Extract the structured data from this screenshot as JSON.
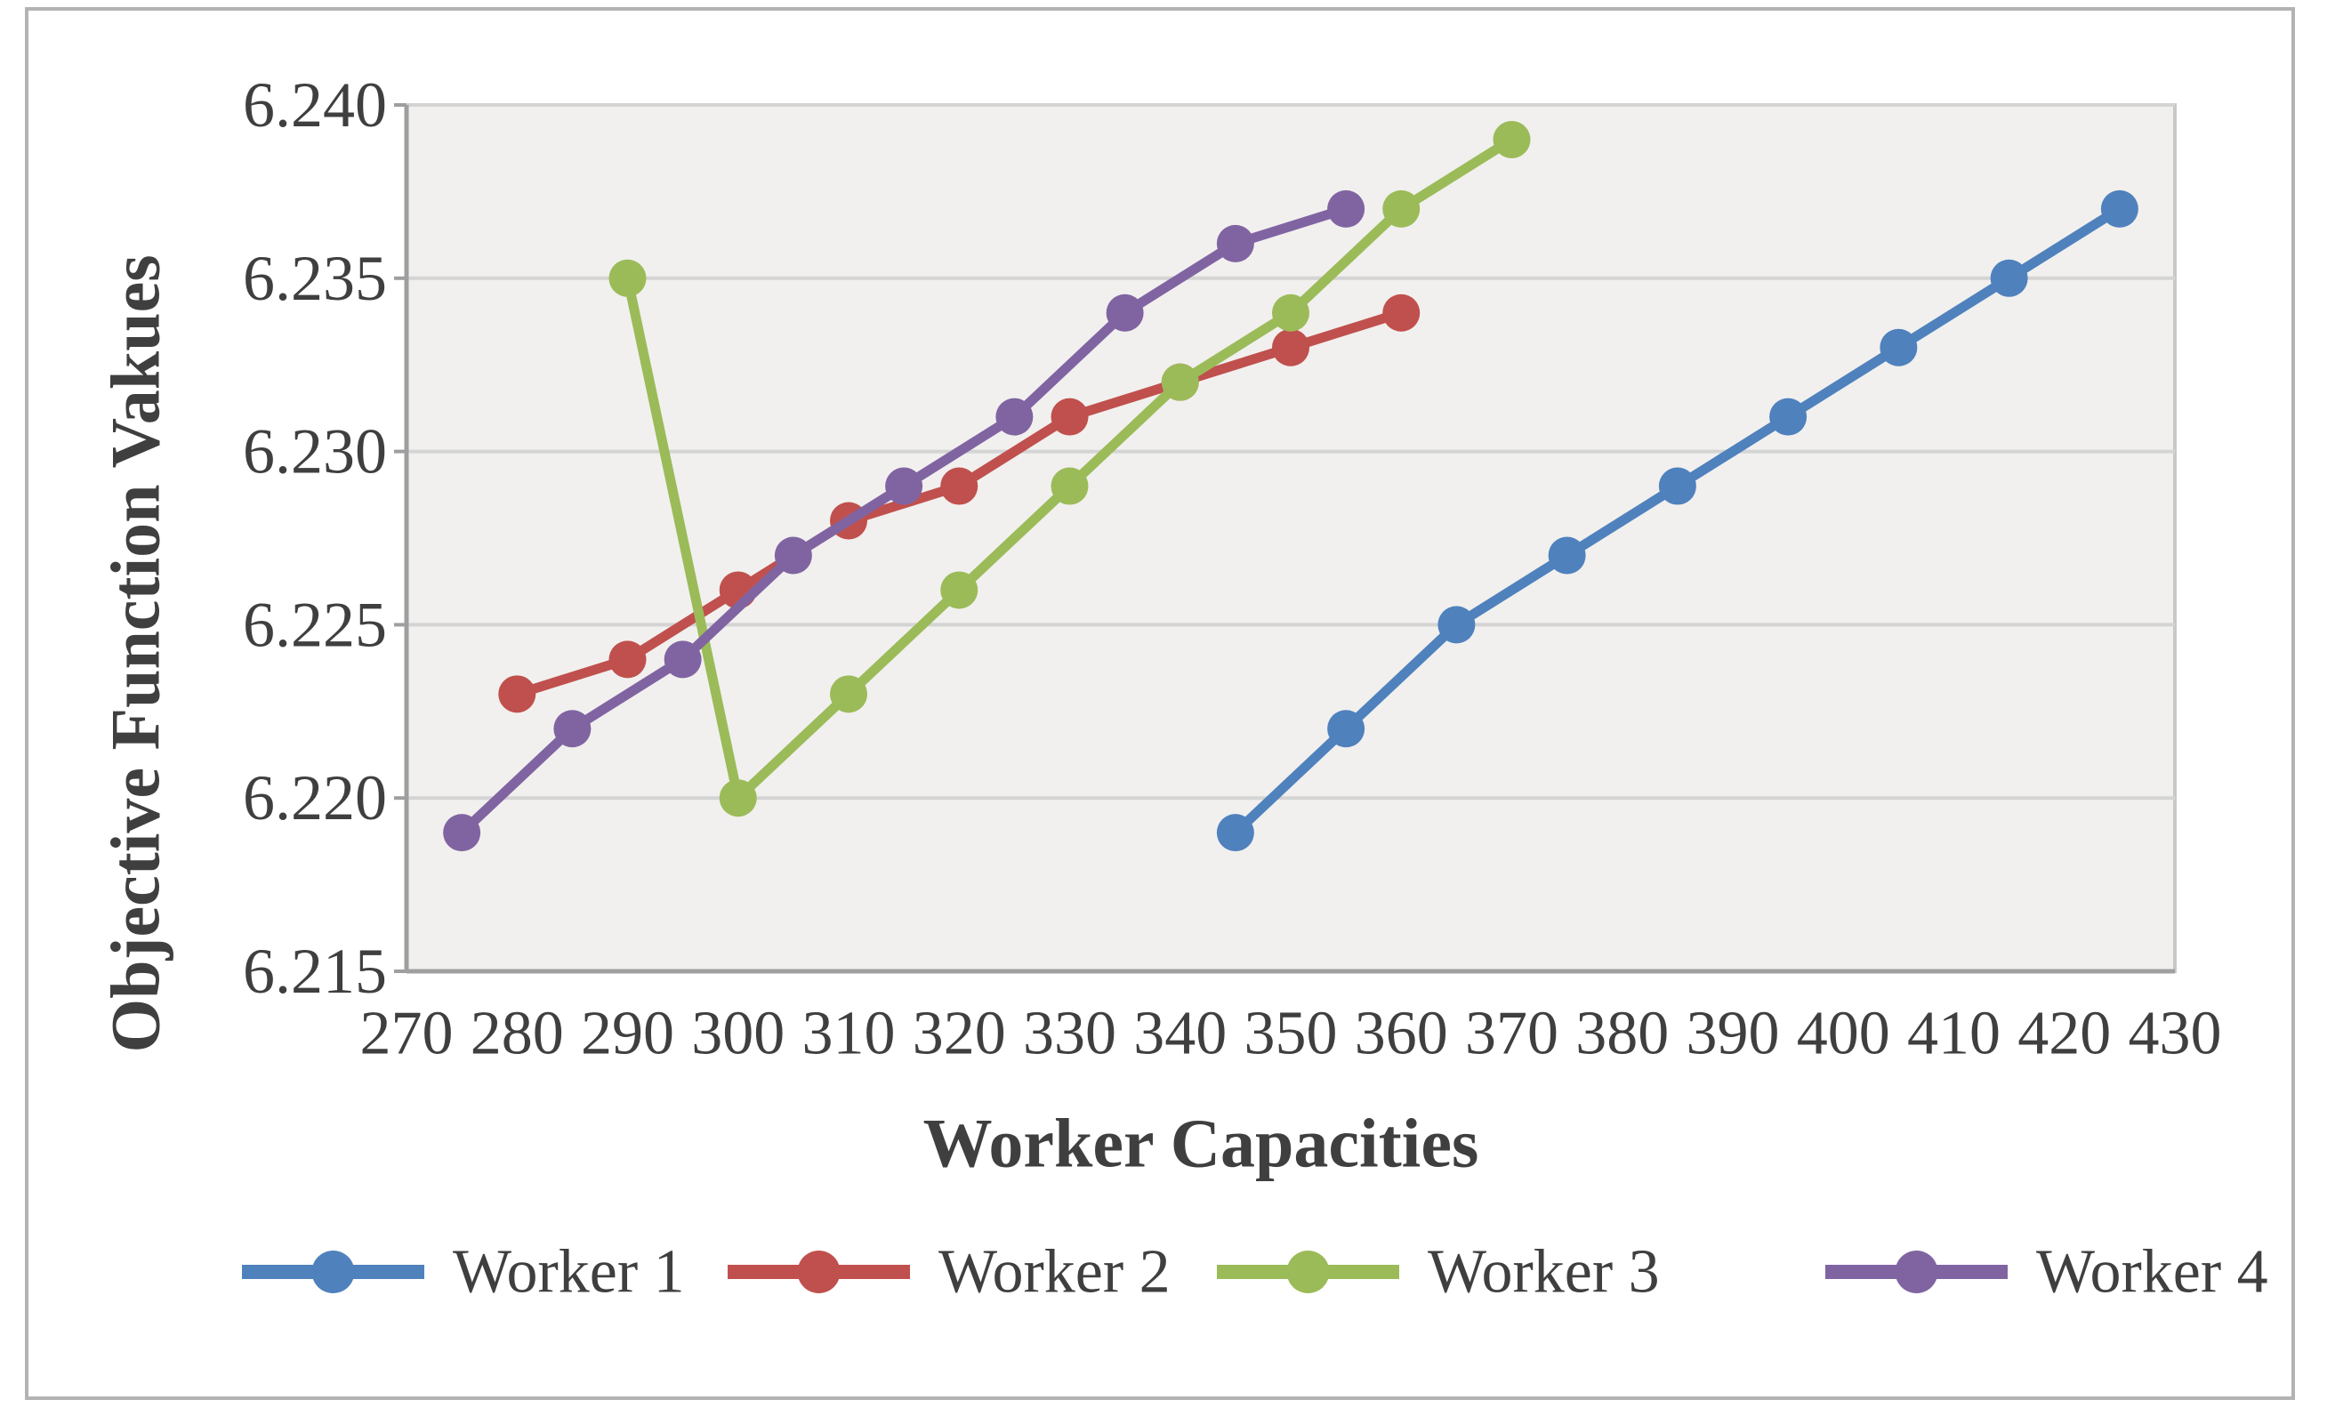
{
  "chart_data": {
    "type": "line",
    "title": "",
    "xlabel": "Worker Capacities",
    "ylabel": "Objective Function Vakues",
    "xlim": [
      270,
      430
    ],
    "ylim": [
      6.215,
      6.24
    ],
    "x_tick_step": 10,
    "y_tick_step": 0.005,
    "x_tick_labels": [
      "270",
      "280",
      "290",
      "300",
      "310",
      "320",
      "330",
      "340",
      "350",
      "360",
      "370",
      "380",
      "390",
      "400",
      "410",
      "420",
      "430"
    ],
    "y_tick_labels": [
      "6.215",
      "6.220",
      "6.225",
      "6.230",
      "6.235",
      "6.240"
    ],
    "grid": true,
    "legend_position": "bottom",
    "series": [
      {
        "name": "Worker 1",
        "color": "#4F81BD",
        "x": [
          345,
          355,
          365,
          375,
          385,
          395,
          405,
          415,
          425
        ],
        "y": [
          6.219,
          6.222,
          6.225,
          6.227,
          6.229,
          6.231,
          6.233,
          6.235,
          6.237
        ]
      },
      {
        "name": "Worker 2",
        "color": "#C0504D",
        "x": [
          280,
          290,
          300,
          310,
          320,
          330,
          340,
          350,
          360
        ],
        "y": [
          6.223,
          6.224,
          6.226,
          6.228,
          6.229,
          6.231,
          6.232,
          6.233,
          6.234
        ]
      },
      {
        "name": "Worker 3",
        "color": "#9BBB59",
        "x": [
          290,
          300,
          310,
          320,
          330,
          340,
          350,
          360,
          370
        ],
        "y": [
          6.235,
          6.22,
          6.223,
          6.226,
          6.229,
          6.232,
          6.234,
          6.237,
          6.239
        ]
      },
      {
        "name": "Worker 4",
        "color": "#8064A2",
        "x": [
          275,
          285,
          295,
          305,
          315,
          325,
          335,
          345,
          355
        ],
        "y": [
          6.219,
          6.222,
          6.224,
          6.227,
          6.229,
          6.231,
          6.234,
          6.236,
          6.237
        ]
      }
    ],
    "colors": {
      "plot_fill": "#f1f0ee",
      "plot_border": "#c8c8c8",
      "gridline": "#d4d4d4",
      "axis_line": "#9f9f9f",
      "text": "#3f3f3f",
      "figure_border": "#b3b3b3"
    }
  }
}
